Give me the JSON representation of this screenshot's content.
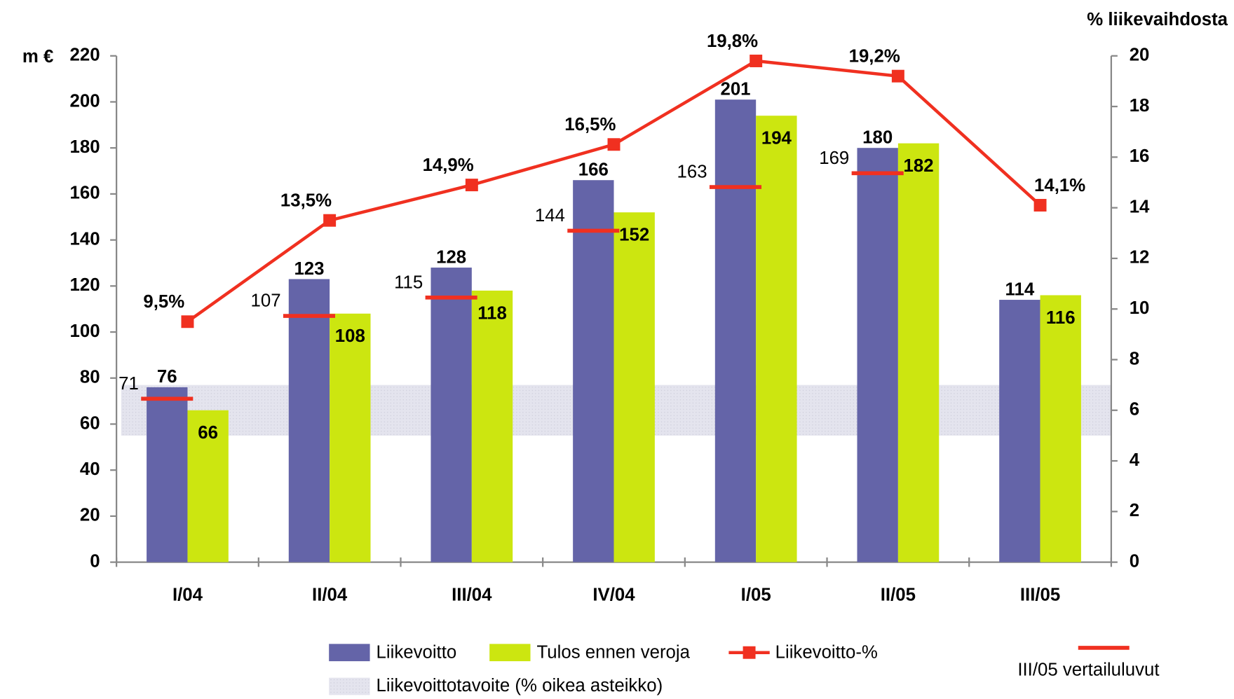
{
  "chart_data": {
    "type": "bar",
    "y_label": "m €",
    "y2_label": "% liikevaihdosta",
    "categories": [
      "I/04",
      "II/04",
      "III/04",
      "IV/04",
      "I/05",
      "II/05",
      "III/05"
    ],
    "series": [
      {
        "name": "Liikevoitto",
        "color": "#6464a8",
        "type": "bar",
        "values": [
          76,
          123,
          128,
          166,
          201,
          180,
          114
        ]
      },
      {
        "name": "Tulos ennen veroja",
        "color": "#cce610",
        "type": "bar",
        "values": [
          66,
          108,
          118,
          152,
          194,
          182,
          116
        ]
      },
      {
        "name": "Liikevoitto-%",
        "color": "#f03020",
        "type": "line",
        "axis": "y2",
        "values": [
          9.5,
          13.5,
          14.9,
          16.5,
          19.8,
          19.2,
          14.1
        ],
        "value_labels": [
          "9,5%",
          "13,5%",
          "14,9%",
          "16,5%",
          "19,8%",
          "19,2%",
          "14,1%"
        ]
      },
      {
        "name": "III/05 vertailuluvut",
        "color": "#f03020",
        "type": "dash",
        "values": [
          71,
          107,
          115,
          144,
          163,
          169,
          null
        ]
      }
    ],
    "target_band": {
      "name": "Liikevoittotavoite (% oikea asteikko)",
      "color": "#dcdce8",
      "axis": "y2",
      "range": [
        5,
        7
      ]
    },
    "ylim": [
      0,
      220
    ],
    "yticks": [
      0,
      20,
      40,
      60,
      80,
      100,
      120,
      140,
      160,
      180,
      200,
      220
    ],
    "y2lim": [
      0,
      20
    ],
    "y2ticks": [
      0,
      2,
      4,
      6,
      8,
      10,
      12,
      14,
      16,
      18,
      20
    ]
  }
}
